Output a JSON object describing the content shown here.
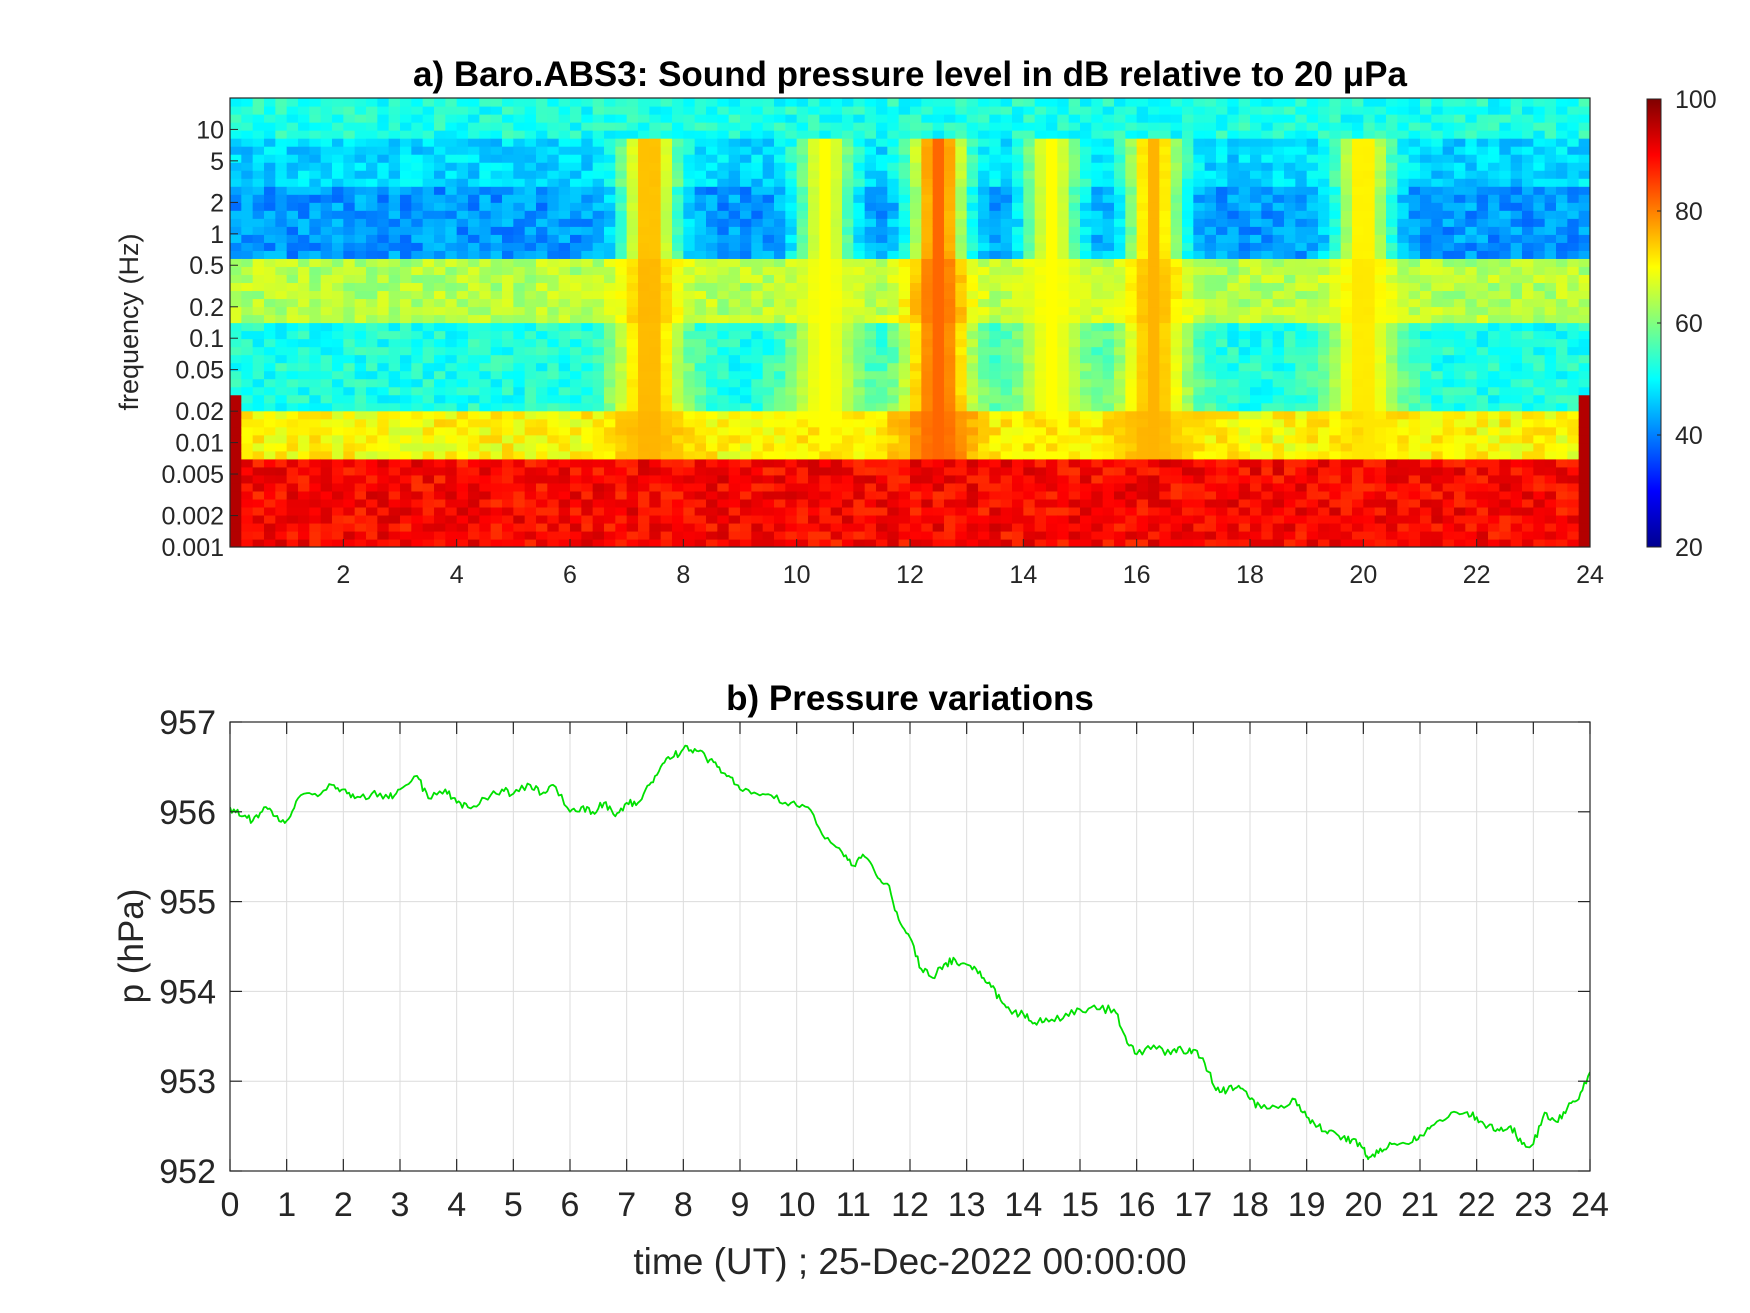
{
  "chart_data": [
    {
      "type": "heatmap",
      "title": "a) Baro.ABS3: Sound pressure level in dB relative to 20 μPa",
      "ylabel": "frequency (Hz)",
      "xlabel": "",
      "yscale": "log",
      "xlim": [
        0,
        24
      ],
      "ylim": [
        0.001,
        20
      ],
      "xticks": [
        2,
        4,
        6,
        8,
        10,
        12,
        14,
        16,
        18,
        20,
        22,
        24
      ],
      "yticks": [
        {
          "value": 10,
          "label": "10"
        },
        {
          "value": 5,
          "label": "5"
        },
        {
          "value": 2,
          "label": "2"
        },
        {
          "value": 1,
          "label": "1"
        },
        {
          "value": 0.5,
          "label": "0.5"
        },
        {
          "value": 0.2,
          "label": "0.2"
        },
        {
          "value": 0.1,
          "label": "0.1"
        },
        {
          "value": 0.05,
          "label": "0.05"
        },
        {
          "value": 0.02,
          "label": "0.02"
        },
        {
          "value": 0.01,
          "label": "0.01"
        },
        {
          "value": 0.005,
          "label": "0.005"
        },
        {
          "value": 0.002,
          "label": "0.002"
        },
        {
          "value": 0.001,
          "label": "0.001"
        }
      ],
      "colorbar": {
        "range": [
          20,
          100
        ],
        "ticks": [
          20,
          40,
          60,
          80,
          100
        ],
        "colormap": "jet"
      },
      "bands": [
        {
          "fmin": 8,
          "fmax": 20,
          "level_db": 52
        },
        {
          "fmin": 3,
          "fmax": 8,
          "level_db": 47
        },
        {
          "fmin": 0.6,
          "fmax": 3,
          "level_db": 42
        },
        {
          "fmin": 0.13,
          "fmax": 0.6,
          "level_db": 64
        },
        {
          "fmin": 0.02,
          "fmax": 0.13,
          "level_db": 52
        },
        {
          "fmin": 0.007,
          "fmax": 0.02,
          "level_db": 70
        },
        {
          "fmin": 0.001,
          "fmax": 0.007,
          "level_db": 90
        }
      ],
      "events": [
        {
          "t": 7.4,
          "level_db": 76
        },
        {
          "t": 10.5,
          "level_db": 70
        },
        {
          "t": 12.5,
          "level_db": 82
        },
        {
          "t": 14.5,
          "level_db": 70
        },
        {
          "t": 16.3,
          "level_db": 76
        },
        {
          "t": 20.0,
          "level_db": 72
        }
      ]
    },
    {
      "type": "line",
      "title": "b) Pressure variations",
      "xlabel": "time (UT) ; 25-Dec-2022 00:00:00",
      "ylabel": "p (hPa)",
      "xlim": [
        0,
        24
      ],
      "ylim": [
        952,
        957
      ],
      "xticks": [
        0,
        1,
        2,
        3,
        4,
        5,
        6,
        7,
        8,
        9,
        10,
        11,
        12,
        13,
        14,
        15,
        16,
        17,
        18,
        19,
        20,
        21,
        22,
        23,
        24
      ],
      "yticks": [
        952,
        953,
        954,
        955,
        956,
        957
      ],
      "grid": true,
      "color": "#00e000",
      "x": [
        0,
        0.2,
        0.4,
        0.6,
        0.8,
        1.0,
        1.2,
        1.5,
        1.8,
        2.0,
        2.2,
        2.5,
        2.8,
        3.0,
        3.3,
        3.5,
        3.8,
        4.0,
        4.2,
        4.5,
        4.8,
        5.0,
        5.3,
        5.5,
        5.7,
        6.0,
        6.2,
        6.4,
        6.6,
        6.8,
        7.0,
        7.2,
        7.4,
        7.6,
        7.8,
        8.0,
        8.2,
        8.4,
        8.6,
        8.8,
        9.0,
        9.3,
        9.6,
        9.9,
        10.2,
        10.5,
        10.8,
        11.0,
        11.2,
        11.4,
        11.6,
        11.8,
        12.0,
        12.2,
        12.4,
        12.6,
        12.8,
        13.0,
        13.2,
        13.4,
        13.6,
        13.8,
        14.0,
        14.2,
        14.4,
        14.7,
        15.0,
        15.3,
        15.6,
        15.8,
        16.0,
        16.3,
        16.6,
        16.8,
        17.0,
        17.2,
        17.4,
        17.6,
        17.8,
        18.0,
        18.2,
        18.5,
        18.8,
        19.0,
        19.2,
        19.4,
        19.6,
        19.8,
        20.0,
        20.1,
        20.3,
        20.5,
        20.8,
        21.0,
        21.2,
        21.5,
        21.8,
        22.0,
        22.2,
        22.4,
        22.6,
        22.8,
        23.0,
        23.2,
        23.4,
        23.6,
        23.8,
        24.0
      ],
      "y": [
        956.05,
        955.95,
        955.9,
        956.05,
        955.95,
        955.9,
        956.15,
        956.2,
        956.3,
        956.25,
        956.15,
        956.2,
        956.15,
        956.25,
        956.4,
        956.15,
        956.25,
        956.1,
        956.05,
        956.15,
        956.25,
        956.2,
        956.3,
        956.2,
        956.3,
        956.0,
        956.05,
        956.0,
        956.1,
        955.95,
        956.1,
        956.1,
        956.3,
        956.5,
        956.6,
        956.7,
        956.7,
        956.6,
        956.5,
        956.4,
        956.25,
        956.2,
        956.15,
        956.1,
        956.05,
        955.7,
        955.55,
        955.4,
        955.5,
        955.3,
        955.2,
        954.8,
        954.6,
        954.25,
        954.15,
        954.3,
        954.35,
        954.3,
        954.2,
        954.1,
        953.9,
        953.75,
        953.75,
        953.65,
        953.7,
        953.7,
        953.8,
        953.8,
        953.8,
        953.5,
        953.3,
        953.4,
        953.3,
        953.35,
        953.35,
        953.2,
        952.9,
        952.9,
        952.95,
        952.8,
        952.7,
        952.7,
        952.8,
        952.6,
        952.5,
        952.45,
        952.35,
        952.35,
        952.25,
        952.15,
        952.25,
        952.3,
        952.3,
        952.4,
        952.5,
        952.6,
        952.65,
        952.6,
        952.5,
        952.45,
        952.5,
        952.3,
        952.3,
        952.65,
        952.55,
        952.7,
        952.8,
        953.1
      ]
    }
  ]
}
